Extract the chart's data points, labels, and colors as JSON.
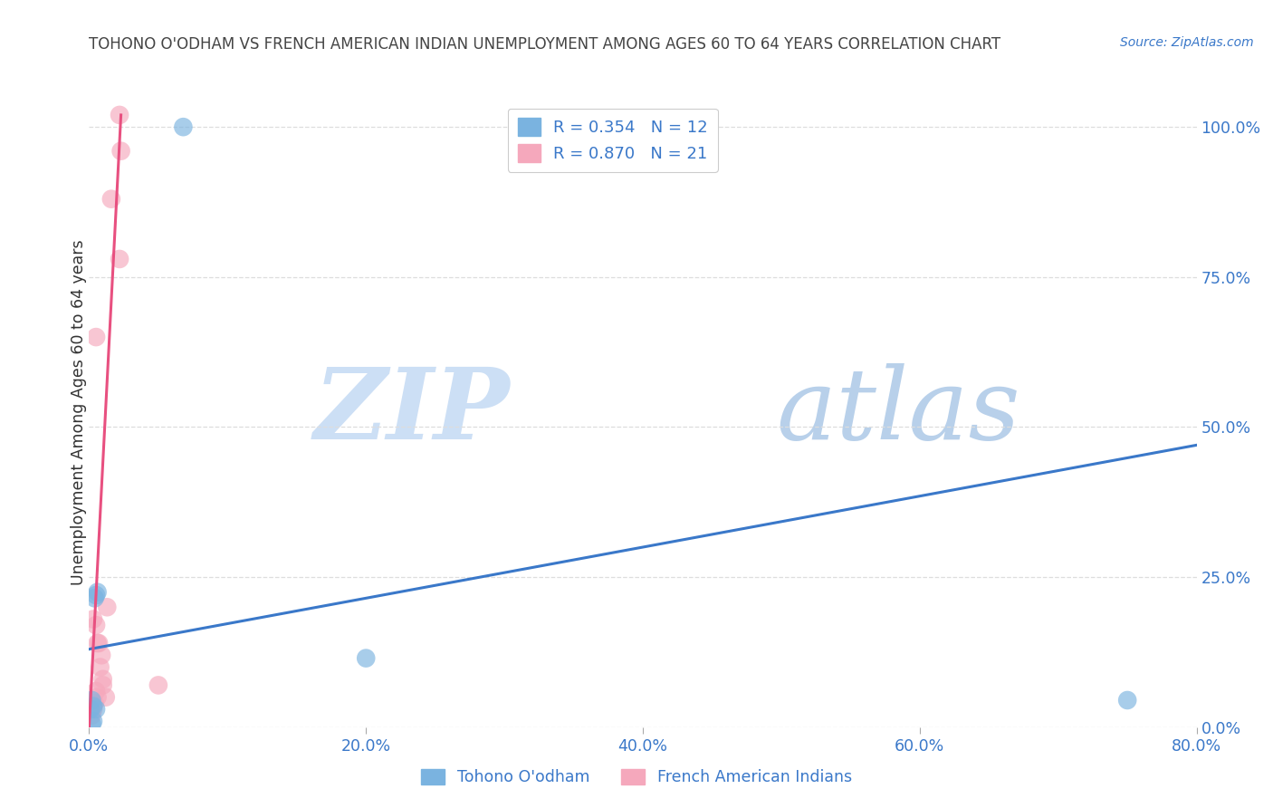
{
  "title": "TOHONO O'ODHAM VS FRENCH AMERICAN INDIAN UNEMPLOYMENT AMONG AGES 60 TO 64 YEARS CORRELATION CHART",
  "source": "Source: ZipAtlas.com",
  "ylabel": "Unemployment Among Ages 60 to 64 years",
  "xlim": [
    0.0,
    0.8
  ],
  "ylim": [
    0.0,
    1.05
  ],
  "xtick_labels": [
    "0.0%",
    "20.0%",
    "40.0%",
    "60.0%",
    "80.0%"
  ],
  "xtick_vals": [
    0.0,
    0.2,
    0.4,
    0.6,
    0.8
  ],
  "ytick_labels": [
    "100.0%",
    "75.0%",
    "50.0%",
    "25.0%",
    "0.0%"
  ],
  "ytick_vals": [
    1.0,
    0.75,
    0.5,
    0.25,
    0.0
  ],
  "blue_scatter_x": [
    0.004,
    0.005,
    0.006,
    0.005,
    0.003,
    0.002,
    0.001,
    0.003,
    0.002,
    0.2,
    0.75,
    0.068
  ],
  "blue_scatter_y": [
    0.215,
    0.22,
    0.225,
    0.03,
    0.035,
    0.045,
    0.03,
    0.01,
    0.005,
    0.115,
    0.045,
    1.0
  ],
  "pink_scatter_x": [
    0.002,
    0.003,
    0.003,
    0.004,
    0.005,
    0.005,
    0.006,
    0.006,
    0.007,
    0.008,
    0.009,
    0.01,
    0.01,
    0.012,
    0.013,
    0.016,
    0.023,
    0.022,
    0.022,
    0.05,
    0.005
  ],
  "pink_scatter_y": [
    0.02,
    0.03,
    0.18,
    0.04,
    0.06,
    0.17,
    0.14,
    0.05,
    0.14,
    0.1,
    0.12,
    0.08,
    0.07,
    0.05,
    0.2,
    0.88,
    0.96,
    0.78,
    1.02,
    0.07,
    0.65
  ],
  "blue_R": 0.354,
  "blue_N": 12,
  "pink_R": 0.87,
  "pink_N": 21,
  "blue_line_x": [
    0.0,
    0.8
  ],
  "blue_line_y": [
    0.13,
    0.47
  ],
  "pink_line_x": [
    0.0,
    0.023
  ],
  "pink_line_y": [
    0.0,
    1.02
  ],
  "blue_dot_color": "#7ab3e0",
  "pink_dot_color": "#f5a8bc",
  "blue_line_color": "#3a78c9",
  "pink_line_color": "#e85080",
  "title_color": "#444444",
  "axis_label_color": "#333333",
  "axis_tick_color": "#3a78c9",
  "watermark_zip_color": "#dce8f5",
  "watermark_atlas_color": "#c5d8ee",
  "legend_label_blue": "Tohono O'odham",
  "legend_label_pink": "French American Indians",
  "background_color": "#ffffff",
  "grid_color": "#dddddd"
}
